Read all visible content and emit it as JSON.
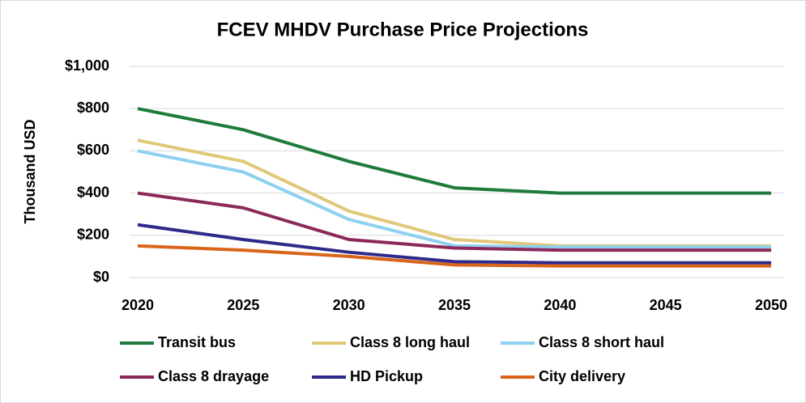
{
  "chart_data": {
    "type": "line",
    "title": "FCEV MHDV Purchase Price Projections",
    "y_label": "Thousand USD",
    "x": [
      2020,
      2025,
      2030,
      2035,
      2040,
      2045,
      2050
    ],
    "series": [
      {
        "name": "Transit bus",
        "color": "#1e7b3c",
        "values": [
          800,
          700,
          550,
          425,
          400,
          400,
          400
        ]
      },
      {
        "name": "Class 8 long haul",
        "color": "#e0c878",
        "values": [
          650,
          550,
          315,
          180,
          150,
          150,
          150
        ]
      },
      {
        "name": "Class 8 short haul",
        "color": "#8fd0f0",
        "values": [
          600,
          500,
          275,
          150,
          145,
          145,
          145
        ]
      },
      {
        "name": "Class 8 drayage",
        "color": "#8b2a5a",
        "values": [
          400,
          330,
          180,
          140,
          130,
          130,
          130
        ]
      },
      {
        "name": "HD Pickup",
        "color": "#2e2a8a",
        "values": [
          250,
          180,
          120,
          75,
          70,
          70,
          70
        ]
      },
      {
        "name": "City delivery",
        "color": "#d9641a",
        "values": [
          150,
          130,
          100,
          60,
          55,
          55,
          55
        ]
      }
    ],
    "xlim": [
      2020,
      2050
    ],
    "xticks": [
      2020,
      2025,
      2030,
      2035,
      2040,
      2045,
      2050
    ],
    "ylim": [
      0,
      1000
    ],
    "yticks": [
      {
        "value": 0,
        "label": "$0"
      },
      {
        "value": 200,
        "label": "$200"
      },
      {
        "value": 400,
        "label": "$400"
      },
      {
        "value": 600,
        "label": "$600"
      },
      {
        "value": 800,
        "label": "$800"
      },
      {
        "value": 1000,
        "label": "$1,000"
      }
    ],
    "grid": true,
    "legend": "bottom"
  }
}
